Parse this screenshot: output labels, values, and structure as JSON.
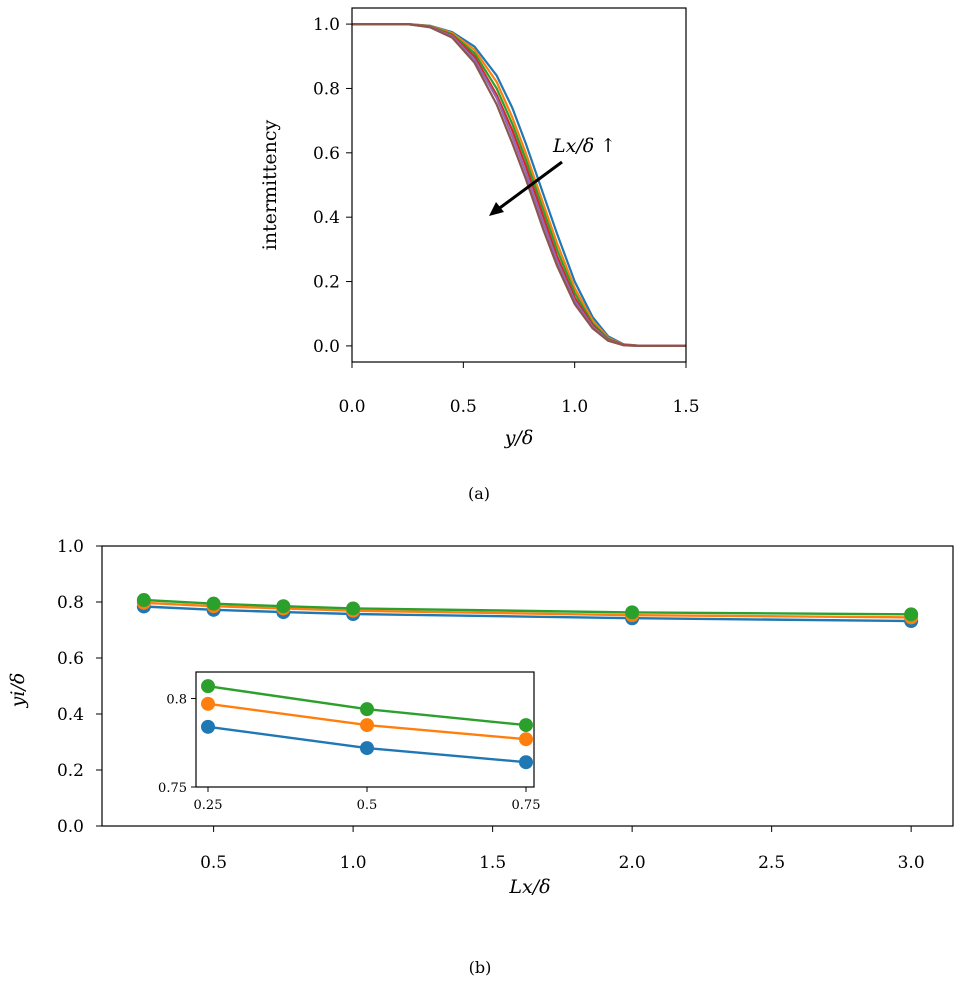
{
  "chart_data": [
    {
      "panel": "(a)",
      "type": "line",
      "xlabel": "y/δ",
      "ylabel": "intermittency",
      "xlim": [
        0,
        1.5
      ],
      "ylim": [
        -0.05,
        1.05
      ],
      "xticks": [
        "0.0",
        "0.5",
        "1.0",
        "1.5"
      ],
      "yticks": [
        "0.0",
        "0.2",
        "0.4",
        "0.6",
        "0.8",
        "1.0"
      ],
      "annotation": "Lx/δ ↑",
      "colors": [
        "#1f77b4",
        "#ff7f0e",
        "#2ca02c",
        "#d62728",
        "#9467bd",
        "#8c564b"
      ],
      "series": [
        {
          "x": [
            0,
            0.25,
            0.35,
            0.45,
            0.55,
            0.65,
            0.72,
            0.78,
            0.82,
            0.86,
            0.92,
            1.0,
            1.08,
            1.15,
            1.22,
            1.3,
            1.5
          ],
          "values": [
            1,
            1,
            0.995,
            0.975,
            0.93,
            0.84,
            0.74,
            0.63,
            0.55,
            0.47,
            0.35,
            0.2,
            0.09,
            0.03,
            0.005,
            0,
            0
          ]
        },
        {
          "x": [
            0,
            0.25,
            0.35,
            0.45,
            0.55,
            0.65,
            0.72,
            0.78,
            0.82,
            0.86,
            0.92,
            1.0,
            1.08,
            1.15,
            1.22,
            1.3,
            1.5
          ],
          "values": [
            1,
            1,
            0.994,
            0.972,
            0.92,
            0.82,
            0.71,
            0.6,
            0.52,
            0.44,
            0.32,
            0.18,
            0.08,
            0.025,
            0.004,
            0,
            0
          ]
        },
        {
          "x": [
            0,
            0.25,
            0.35,
            0.45,
            0.55,
            0.65,
            0.72,
            0.78,
            0.82,
            0.86,
            0.92,
            1.0,
            1.08,
            1.15,
            1.22,
            1.3,
            1.5
          ],
          "values": [
            1,
            1,
            0.993,
            0.968,
            0.91,
            0.8,
            0.69,
            0.58,
            0.5,
            0.42,
            0.3,
            0.165,
            0.07,
            0.022,
            0.003,
            0,
            0
          ]
        },
        {
          "x": [
            0,
            0.25,
            0.35,
            0.45,
            0.55,
            0.65,
            0.72,
            0.78,
            0.82,
            0.86,
            0.92,
            1.0,
            1.08,
            1.15,
            1.22,
            1.3,
            1.5
          ],
          "values": [
            1,
            1,
            0.992,
            0.965,
            0.9,
            0.78,
            0.67,
            0.56,
            0.48,
            0.4,
            0.28,
            0.15,
            0.065,
            0.02,
            0.003,
            0,
            0
          ]
        },
        {
          "x": [
            0,
            0.25,
            0.35,
            0.45,
            0.55,
            0.65,
            0.72,
            0.78,
            0.82,
            0.86,
            0.92,
            1.0,
            1.08,
            1.15,
            1.22,
            1.3,
            1.5
          ],
          "values": [
            1,
            1,
            0.991,
            0.962,
            0.89,
            0.77,
            0.65,
            0.54,
            0.46,
            0.38,
            0.265,
            0.14,
            0.06,
            0.018,
            0.002,
            0,
            0
          ]
        },
        {
          "x": [
            0,
            0.25,
            0.35,
            0.45,
            0.55,
            0.65,
            0.72,
            0.78,
            0.82,
            0.86,
            0.92,
            1.0,
            1.08,
            1.15,
            1.22,
            1.3,
            1.5
          ],
          "values": [
            1,
            1,
            0.99,
            0.958,
            0.88,
            0.75,
            0.63,
            0.52,
            0.44,
            0.36,
            0.25,
            0.13,
            0.055,
            0.016,
            0.002,
            0,
            0
          ]
        }
      ]
    },
    {
      "panel": "(b)",
      "type": "line",
      "xlabel": "Lx/δ",
      "ylabel": "yi/δ",
      "xlim": [
        0.1,
        3.15
      ],
      "ylim": [
        0,
        1.0
      ],
      "xticks": [
        "0.5",
        "1.0",
        "1.5",
        "2.0",
        "2.5",
        "3.0"
      ],
      "yticks": [
        "0.0",
        "0.2",
        "0.4",
        "0.6",
        "0.8",
        "1.0"
      ],
      "x": [
        0.25,
        0.5,
        0.75,
        1.0,
        2.0,
        3.0
      ],
      "series": [
        {
          "color": "#1f77b4",
          "values": [
            0.784,
            0.772,
            0.764,
            0.757,
            0.742,
            0.732
          ]
        },
        {
          "color": "#ff7f0e",
          "values": [
            0.797,
            0.785,
            0.777,
            0.769,
            0.753,
            0.745
          ]
        },
        {
          "color": "#2ca02c",
          "values": [
            0.807,
            0.794,
            0.785,
            0.777,
            0.763,
            0.756
          ]
        }
      ],
      "inset": {
        "xlim": [
          0.25,
          0.75
        ],
        "ylim": [
          0.75,
          0.815
        ],
        "xticks": [
          "0.25",
          "0.5",
          "0.75"
        ],
        "yticks": [
          "0.75",
          "0.8"
        ],
        "x": [
          0.25,
          0.5,
          0.75
        ],
        "series": [
          {
            "color": "#1f77b4",
            "values": [
              0.784,
              0.772,
              0.764
            ]
          },
          {
            "color": "#ff7f0e",
            "values": [
              0.797,
              0.785,
              0.777
            ]
          },
          {
            "color": "#2ca02c",
            "values": [
              0.807,
              0.794,
              0.785
            ]
          }
        ]
      }
    }
  ],
  "captions": {
    "a": "(a)",
    "b": "(b)"
  }
}
